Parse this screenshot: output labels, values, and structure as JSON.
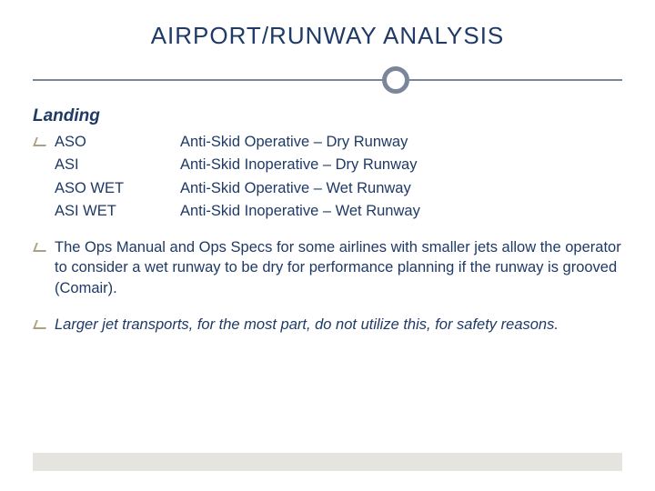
{
  "colors": {
    "text": "#1f3a66",
    "rule": "#7a8699",
    "band": "#e6e4de",
    "bullet_accent": "#8a7a4a",
    "background": "#ffffff"
  },
  "title": "AIRPORT/RUNWAY ANALYSIS",
  "section": "Landing",
  "codes": [
    {
      "abbr": "ASO",
      "desc": "Anti-Skid Operative –   Dry Runway"
    },
    {
      "abbr": "ASI",
      "desc": "Anti-Skid Inoperative – Dry Runway"
    },
    {
      "abbr": "ASO WET",
      "desc": "Anti-Skid Operative –   Wet Runway"
    },
    {
      "abbr": "ASI WET",
      "desc": "Anti-Skid Inoperative – Wet Runway"
    }
  ],
  "paragraphs": [
    {
      "text": "The Ops Manual and Ops Specs for some airlines with smaller jets allow the operator to consider a wet runway to be dry for performance planning if the runway is grooved (Comair).",
      "italic": false
    },
    {
      "text": "Larger jet transports, for the most part, do not utilize this, for safety reasons.",
      "italic": true
    }
  ]
}
